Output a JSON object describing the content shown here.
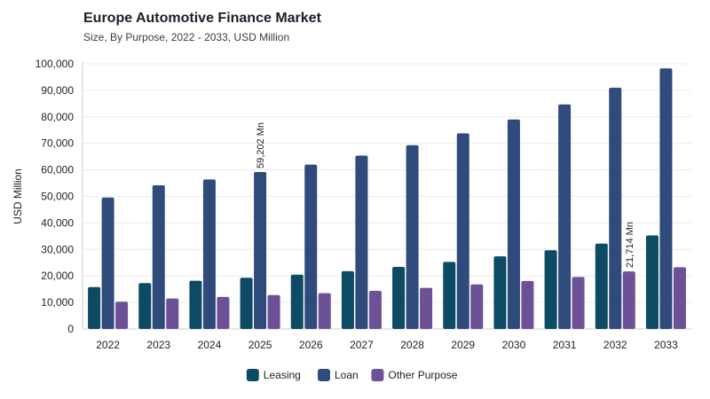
{
  "title": "Europe Automotive Finance Market",
  "subtitle": "Size, By Purpose, 2022 - 2033, USD Million",
  "chart_data": {
    "type": "bar",
    "title": "Europe Automotive Finance Market",
    "subtitle": "Size, By Purpose, 2022 - 2033, USD Million",
    "xlabel": "",
    "ylabel": "USD Million",
    "ylim": [
      0,
      100000
    ],
    "yticks": [
      "0",
      "10,000",
      "20,000",
      "30,000",
      "40,000",
      "50,000",
      "60,000",
      "70,000",
      "80,000",
      "90,000",
      "100,000"
    ],
    "grid": "horizontal",
    "legend_position": "bottom",
    "categories": [
      "2022",
      "2023",
      "2024",
      "2025",
      "2026",
      "2027",
      "2028",
      "2029",
      "2030",
      "2031",
      "2032",
      "2033"
    ],
    "series": [
      {
        "name": "Leasing",
        "color": "#0d4a63",
        "values": [
          15800,
          17300,
          18200,
          19300,
          20500,
          21800,
          23400,
          25300,
          27400,
          29700,
          32200,
          35300
        ]
      },
      {
        "name": "Loan",
        "color": "#2e4b7c",
        "values": [
          49600,
          54200,
          56400,
          59202,
          62000,
          65400,
          69300,
          73800,
          79000,
          84700,
          91000,
          98300
        ]
      },
      {
        "name": "Other Purpose",
        "color": "#6d5196",
        "values": [
          10300,
          11500,
          12100,
          12800,
          13500,
          14400,
          15500,
          16800,
          18100,
          19600,
          21714,
          23300
        ]
      }
    ],
    "annotations": [
      {
        "text": "59,202 Mn",
        "category": "2025",
        "series": "Loan",
        "value": 59202
      },
      {
        "text": "21,714 Mn",
        "category": "2032",
        "series": "Other Purpose",
        "value": 21714
      }
    ]
  }
}
